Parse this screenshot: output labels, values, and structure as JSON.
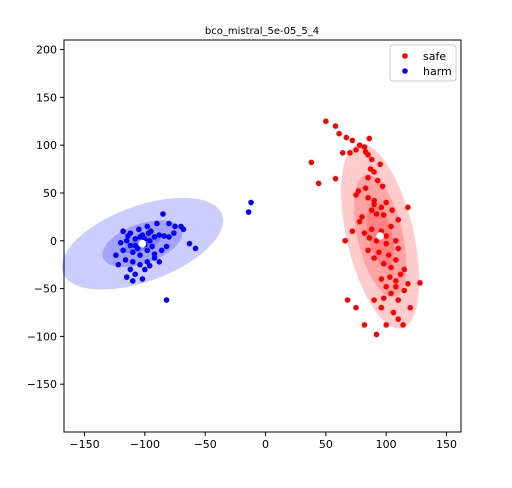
{
  "chart_data": {
    "type": "scatter",
    "title": "bco_mistral_5e-05_5_4",
    "xlabel": "",
    "ylabel": "",
    "xlim": [
      -167,
      162
    ],
    "ylim": [
      -200,
      210
    ],
    "xticks": [
      -150,
      -100,
      -50,
      0,
      50,
      100,
      150
    ],
    "yticks": [
      -150,
      -100,
      -50,
      0,
      50,
      100,
      150,
      200
    ],
    "tick_labels_x": [
      "−150",
      "−100",
      "−50",
      "0",
      "50",
      "100",
      "150"
    ],
    "tick_labels_y": [
      "−150",
      "−100",
      "−50",
      "0",
      "50",
      "100",
      "150",
      "200"
    ],
    "grid": false,
    "legend_position": "top-right",
    "series": [
      {
        "name": "safe",
        "color": "#ff0000",
        "centroid": [
          95,
          5
        ],
        "ellipse": {
          "center": [
            95,
            5
          ],
          "angle_deg": -80,
          "a": [
            33,
            65,
            98
          ],
          "b": [
            10,
            19,
            28
          ]
        },
        "points": [
          [
            50,
            125
          ],
          [
            58,
            120
          ],
          [
            61,
            112
          ],
          [
            67,
            108
          ],
          [
            72,
            105
          ],
          [
            78,
            100
          ],
          [
            86,
            107
          ],
          [
            82,
            98
          ],
          [
            64,
            92
          ],
          [
            70,
            92
          ],
          [
            75,
            95
          ],
          [
            83,
            93
          ],
          [
            85,
            90
          ],
          [
            88,
            85
          ],
          [
            95,
            80
          ],
          [
            87,
            75
          ],
          [
            90,
            72
          ],
          [
            85,
            66
          ],
          [
            93,
            63
          ],
          [
            97,
            57
          ],
          [
            83,
            55
          ],
          [
            77,
            52
          ],
          [
            75,
            48
          ],
          [
            85,
            45
          ],
          [
            90,
            42
          ],
          [
            100,
            40
          ],
          [
            96,
            35
          ],
          [
            90,
            38
          ],
          [
            88,
            32
          ],
          [
            105,
            32
          ],
          [
            118,
            35
          ],
          [
            80,
            25
          ],
          [
            92,
            28
          ],
          [
            98,
            27
          ],
          [
            110,
            22
          ],
          [
            78,
            20
          ],
          [
            88,
            12
          ],
          [
            96,
            10
          ],
          [
            104,
            15
          ],
          [
            72,
            10
          ],
          [
            82,
            8
          ],
          [
            100,
            5
          ],
          [
            108,
            0
          ],
          [
            66,
            0
          ],
          [
            86,
            3
          ],
          [
            92,
            0
          ],
          [
            100,
            -3
          ],
          [
            110,
            -8
          ],
          [
            85,
            -10
          ],
          [
            94,
            -12
          ],
          [
            102,
            -15
          ],
          [
            90,
            -18
          ],
          [
            108,
            -20
          ],
          [
            98,
            -24
          ],
          [
            104,
            -28
          ],
          [
            115,
            -30
          ],
          [
            112,
            -35
          ],
          [
            103,
            -38
          ],
          [
            108,
            -42
          ],
          [
            96,
            -40
          ],
          [
            100,
            -48
          ],
          [
            108,
            -48
          ],
          [
            118,
            -45
          ],
          [
            115,
            -52
          ],
          [
            104,
            -55
          ],
          [
            98,
            -60
          ],
          [
            90,
            -62
          ],
          [
            110,
            -62
          ],
          [
            120,
            -70
          ],
          [
            96,
            -70
          ],
          [
            106,
            -75
          ],
          [
            110,
            -82
          ],
          [
            100,
            -88
          ],
          [
            114,
            -88
          ],
          [
            92,
            -98
          ],
          [
            82,
            -88
          ],
          [
            128,
            -44
          ],
          [
            68,
            -62
          ],
          [
            75,
            -70
          ],
          [
            38,
            82
          ],
          [
            44,
            60
          ],
          [
            58,
            65
          ]
        ]
      },
      {
        "name": "harm",
        "color": "#0000ff",
        "centroid": [
          -102,
          -3
        ],
        "ellipse": {
          "center": [
            -102,
            -3
          ],
          "angle_deg": 28,
          "a": [
            17,
            36,
            73
          ],
          "b": [
            7,
            20,
            38
          ]
        },
        "points": [
          [
            -118,
            10
          ],
          [
            -112,
            8
          ],
          [
            -105,
            12
          ],
          [
            -98,
            15
          ],
          [
            -90,
            18
          ],
          [
            -85,
            28
          ],
          [
            -80,
            18
          ],
          [
            -75,
            15
          ],
          [
            -70,
            15
          ],
          [
            -68,
            12
          ],
          [
            -95,
            10
          ],
          [
            -102,
            6
          ],
          [
            -108,
            2
          ],
          [
            -115,
            0
          ],
          [
            -120,
            -2
          ],
          [
            -112,
            -5
          ],
          [
            -106,
            -8
          ],
          [
            -100,
            -4
          ],
          [
            -96,
            0
          ],
          [
            -92,
            4
          ],
          [
            -88,
            6
          ],
          [
            -84,
            5
          ],
          [
            -80,
            4
          ],
          [
            -76,
            8
          ],
          [
            -118,
            -10
          ],
          [
            -110,
            -12
          ],
          [
            -104,
            -15
          ],
          [
            -98,
            -10
          ],
          [
            -92,
            -14
          ],
          [
            -86,
            -10
          ],
          [
            -82,
            -6
          ],
          [
            -116,
            -20
          ],
          [
            -110,
            -22
          ],
          [
            -104,
            -25
          ],
          [
            -98,
            -22
          ],
          [
            -92,
            -18
          ],
          [
            -124,
            -15
          ],
          [
            -122,
            -25
          ],
          [
            -112,
            -30
          ],
          [
            -108,
            -35
          ],
          [
            -100,
            -30
          ],
          [
            -96,
            -26
          ],
          [
            -88,
            -22
          ],
          [
            -115,
            -38
          ],
          [
            -110,
            -42
          ],
          [
            -102,
            -40
          ],
          [
            -108,
            -5
          ],
          [
            -100,
            2
          ],
          [
            -94,
            -6
          ],
          [
            -104,
            4
          ],
          [
            -114,
            5
          ],
          [
            -97,
            8
          ],
          [
            -63,
            -3
          ],
          [
            -58,
            -8
          ],
          [
            -82,
            -62
          ],
          [
            -12,
            40
          ],
          [
            -14,
            30
          ]
        ]
      }
    ]
  }
}
